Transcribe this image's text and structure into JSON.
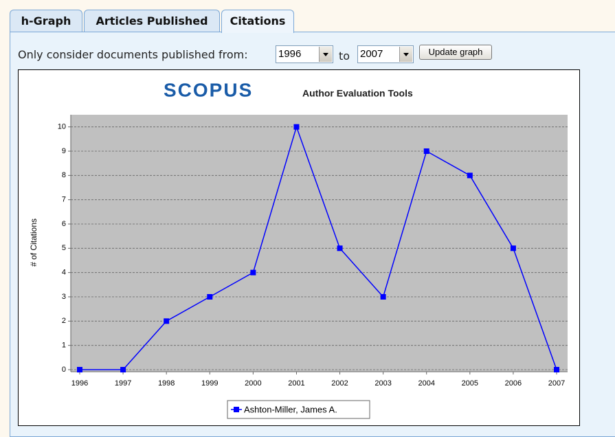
{
  "tabs": [
    "h-Graph",
    "Articles Published",
    "Citations"
  ],
  "filter": {
    "label": "Only consider documents published from:",
    "from": "1996",
    "to_label": "to",
    "to": "2007",
    "button": "Update graph"
  },
  "chart_data": {
    "type": "line",
    "logo": "SCOPUS",
    "title": "Author Evaluation Tools",
    "y_label": "# of Citations",
    "categories": [
      "1996",
      "1997",
      "1998",
      "1999",
      "2000",
      "2001",
      "2002",
      "2003",
      "2004",
      "2005",
      "2006",
      "2007"
    ],
    "series": [
      {
        "name": "Ashton-Miller, James A.",
        "color": "#0000ff",
        "values": [
          0,
          0,
          2,
          3,
          4,
          10,
          5,
          3,
          9,
          8,
          5,
          0
        ]
      }
    ],
    "ylim": [
      0,
      10.5
    ],
    "yticks": [
      0,
      1,
      2,
      3,
      4,
      5,
      6,
      7,
      8,
      9,
      10
    ],
    "grid": true,
    "legend": "bottom"
  }
}
